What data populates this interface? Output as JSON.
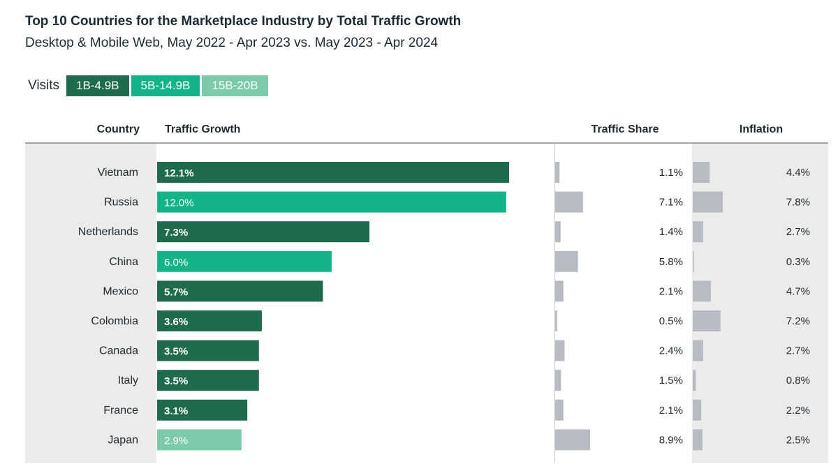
{
  "title": "Top 10 Countries for the Marketplace Industry by Total Traffic Growth",
  "subtitle": "Desktop & Mobile Web, May 2022 - Apr 2023 vs. May 2023 - Apr 2024",
  "legend": {
    "label": "Visits",
    "items": [
      {
        "label": "1B-4.9B",
        "color": "#1f6b4d"
      },
      {
        "label": "5B-14.9B",
        "color": "#14b48a"
      },
      {
        "label": "15B-20B",
        "color": "#7bcaa9"
      }
    ]
  },
  "chart_data": {
    "type": "bar",
    "orientation": "horizontal",
    "headers": {
      "country": "Country",
      "growth": "Traffic Growth",
      "share": "Traffic Share",
      "inflation": "Inflation"
    },
    "categories": [
      "Vietnam",
      "Russia",
      "Netherlands",
      "China",
      "Mexico",
      "Colombia",
      "Canada",
      "Italy",
      "France",
      "Japan"
    ],
    "series": [
      {
        "name": "Traffic Growth",
        "unit": "%",
        "values": [
          12.1,
          12.0,
          7.3,
          6.0,
          5.7,
          3.6,
          3.5,
          3.5,
          3.1,
          2.9
        ],
        "labels": [
          "12.1%",
          "12.0%",
          "7.3%",
          "6.0%",
          "5.7%",
          "3.6%",
          "3.5%",
          "3.5%",
          "3.1%",
          "2.9%"
        ],
        "visit_group": [
          0,
          1,
          0,
          1,
          0,
          0,
          0,
          0,
          0,
          2
        ]
      },
      {
        "name": "Traffic Share",
        "unit": "%",
        "values": [
          1.1,
          7.1,
          1.4,
          5.8,
          2.1,
          0.5,
          2.4,
          1.5,
          2.1,
          8.9
        ],
        "labels": [
          "1.1%",
          "7.1%",
          "1.4%",
          "5.8%",
          "2.1%",
          "0.5%",
          "2.4%",
          "1.5%",
          "2.1%",
          "8.9%"
        ]
      },
      {
        "name": "Inflation",
        "unit": "%",
        "values": [
          4.4,
          7.8,
          2.7,
          0.3,
          4.7,
          7.2,
          2.7,
          0.8,
          2.2,
          2.5
        ],
        "labels": [
          "4.4%",
          "7.8%",
          "2.7%",
          "0.3%",
          "4.7%",
          "7.2%",
          "2.7%",
          "0.8%",
          "2.2%",
          "2.5%"
        ]
      }
    ],
    "colors": {
      "panel_bg": "#ebebeb",
      "gray_bar": "#b7bbc2",
      "header_rule": "#888888"
    }
  }
}
